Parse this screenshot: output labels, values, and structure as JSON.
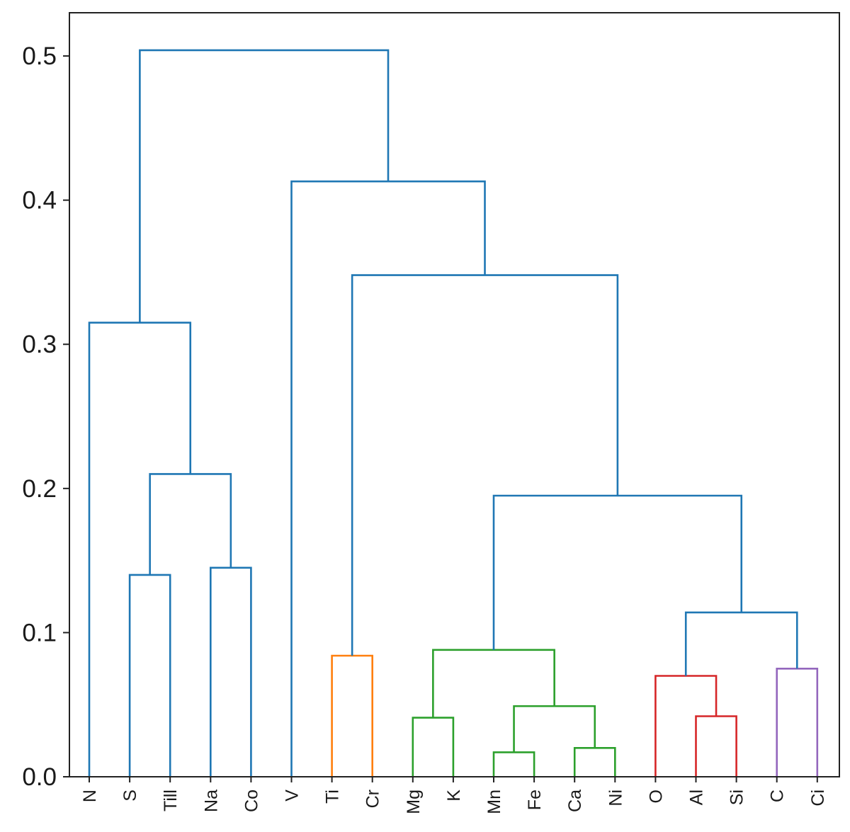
{
  "chart_data": {
    "type": "dendrogram",
    "title": "",
    "xlabel": "",
    "ylabel": "",
    "ylim": [
      0,
      0.53
    ],
    "yticks": [
      "0.0",
      "0.1",
      "0.2",
      "0.3",
      "0.4",
      "0.5"
    ],
    "leaves": [
      "N",
      "S",
      "Till",
      "Na",
      "Co",
      "V",
      "Ti",
      "Cr",
      "Mg",
      "K",
      "Mn",
      "Fe",
      "Ca",
      "Ni",
      "O",
      "Al",
      "Si",
      "C",
      "Ci"
    ],
    "colors": {
      "blue": "#1f77b4",
      "orange": "#ff7f0e",
      "green": "#2ca02c",
      "red": "#d62728",
      "purple": "#9467bd"
    },
    "merges": [
      {
        "left": "Mn",
        "right": "Fe",
        "height": 0.017,
        "color": "green"
      },
      {
        "left": "Ca",
        "right": "Ni",
        "height": 0.02,
        "color": "green"
      },
      {
        "left": "Mg",
        "right": "K",
        "height": 0.041,
        "color": "green"
      },
      {
        "left": "Al",
        "right": "Si",
        "height": 0.042,
        "color": "red"
      },
      {
        "left": "Mn+Fe",
        "right": "Ca+Ni",
        "height": 0.049,
        "color": "green"
      },
      {
        "left": "O",
        "right": "Al+Si",
        "height": 0.07,
        "color": "red"
      },
      {
        "left": "C",
        "right": "Ci",
        "height": 0.075,
        "color": "purple"
      },
      {
        "left": "Ti",
        "right": "Cr",
        "height": 0.084,
        "color": "orange"
      },
      {
        "left": "Mg+K",
        "right": "Mn..Ni",
        "height": 0.088,
        "color": "green"
      },
      {
        "left": "O..Si",
        "right": "C+Ci",
        "height": 0.114,
        "color": "blue"
      },
      {
        "left": "S",
        "right": "Till",
        "height": 0.14,
        "color": "blue"
      },
      {
        "left": "Na",
        "right": "Co",
        "height": 0.145,
        "color": "blue"
      },
      {
        "left": "Mg..Ni",
        "right": "O..Ci",
        "height": 0.195,
        "color": "blue"
      },
      {
        "left": "S+Till",
        "right": "Na+Co",
        "height": 0.21,
        "color": "blue"
      },
      {
        "left": "N",
        "right": "S..Co",
        "height": 0.315,
        "color": "blue"
      },
      {
        "left": "Ti+Cr",
        "right": "Mg..Ci",
        "height": 0.348,
        "color": "blue"
      },
      {
        "left": "V",
        "right": "Ti..Ci",
        "height": 0.413,
        "color": "blue"
      },
      {
        "left": "N..Co",
        "right": "V..Ci",
        "height": 0.504,
        "color": "blue"
      }
    ]
  }
}
